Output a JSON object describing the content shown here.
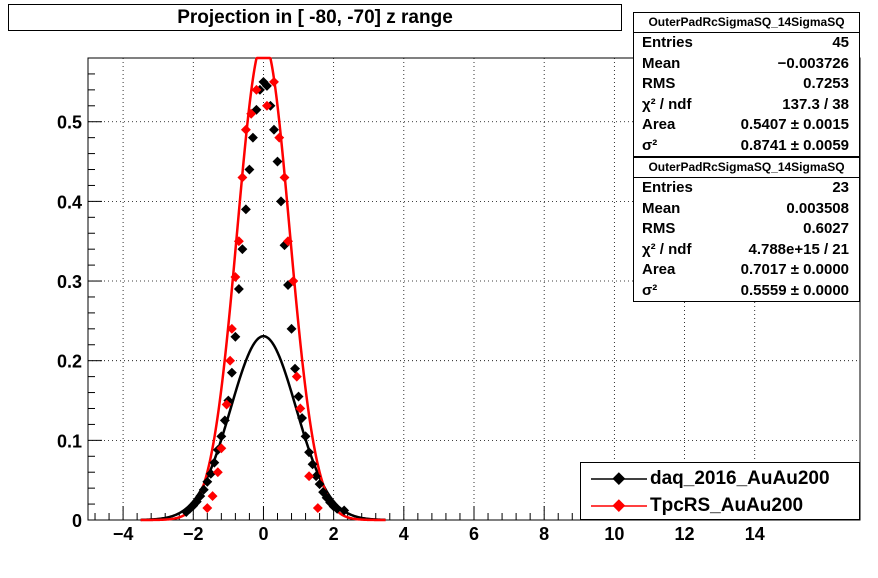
{
  "title": "Projection in [ -80, -70] z range",
  "stats": [
    {
      "name": "OuterPadRcSigmaSQ_14SigmaSQ",
      "rows": [
        {
          "label": "Entries",
          "value": "45"
        },
        {
          "label": "Mean",
          "value": "−0.003726"
        },
        {
          "label": "RMS",
          "value": "0.7253"
        },
        {
          "label": "χ² / ndf",
          "value": "137.3 / 38"
        },
        {
          "label": "Area",
          "value": "0.5407 ± 0.0015"
        },
        {
          "label": "σ²",
          "value": "0.8741 ± 0.0059"
        }
      ]
    },
    {
      "name": "OuterPadRcSigmaSQ_14SigmaSQ",
      "rows": [
        {
          "label": "Entries",
          "value": "23"
        },
        {
          "label": "Mean",
          "value": "0.003508"
        },
        {
          "label": "RMS",
          "value": "0.6027"
        },
        {
          "label": "χ² / ndf",
          "value": "4.788e+15 / 21"
        },
        {
          "label": "Area",
          "value": "0.7017 ± 0.0000"
        },
        {
          "label": "σ²",
          "value": "0.5559 ± 0.0000"
        }
      ]
    }
  ],
  "legend": [
    {
      "label": "daq_2016_AuAu200",
      "color": "#000000"
    },
    {
      "label": "TpcRS_AuAu200",
      "color": "#ff0000"
    }
  ],
  "chart_data": {
    "type": "scatter",
    "title": "Projection in [ -80, -70] z range",
    "xlim": [
      -5,
      17
    ],
    "ylim": [
      0,
      0.58
    ],
    "xticks": [
      "−4",
      "−2",
      "0",
      "2",
      "4",
      "6",
      "8",
      "10",
      "12",
      "14"
    ],
    "xtick_values": [
      -4,
      -2,
      0,
      2,
      4,
      6,
      8,
      10,
      12,
      14
    ],
    "yticks": [
      "0",
      "0.1",
      "0.2",
      "0.3",
      "0.4",
      "0.5"
    ],
    "ytick_values": [
      0,
      0.1,
      0.2,
      0.3,
      0.4,
      0.5
    ],
    "grid": true,
    "legend_position": "bottom-right",
    "series": [
      {
        "name": "daq_2016_AuAu200",
        "color": "#000000",
        "fit_sigma2": 0.8741,
        "fit_area": 0.5407,
        "points": [
          [
            -2.2,
            0.01
          ],
          [
            -2.1,
            0.014
          ],
          [
            -2.0,
            0.018
          ],
          [
            -1.9,
            0.023
          ],
          [
            -1.8,
            0.03
          ],
          [
            -1.7,
            0.038
          ],
          [
            -1.6,
            0.048
          ],
          [
            -1.5,
            0.058
          ],
          [
            -1.4,
            0.072
          ],
          [
            -1.3,
            0.088
          ],
          [
            -1.2,
            0.105
          ],
          [
            -1.1,
            0.125
          ],
          [
            -1.0,
            0.15
          ],
          [
            -0.9,
            0.185
          ],
          [
            -0.8,
            0.23
          ],
          [
            -0.7,
            0.29
          ],
          [
            -0.6,
            0.34
          ],
          [
            -0.5,
            0.39
          ],
          [
            -0.4,
            0.44
          ],
          [
            -0.3,
            0.48
          ],
          [
            -0.2,
            0.515
          ],
          [
            -0.1,
            0.54
          ],
          [
            0.0,
            0.55
          ],
          [
            0.1,
            0.545
          ],
          [
            0.2,
            0.52
          ],
          [
            0.3,
            0.49
          ],
          [
            0.4,
            0.45
          ],
          [
            0.5,
            0.4
          ],
          [
            0.6,
            0.345
          ],
          [
            0.7,
            0.295
          ],
          [
            0.8,
            0.24
          ],
          [
            0.9,
            0.19
          ],
          [
            1.0,
            0.155
          ],
          [
            1.1,
            0.128
          ],
          [
            1.2,
            0.105
          ],
          [
            1.3,
            0.085
          ],
          [
            1.4,
            0.07
          ],
          [
            1.5,
            0.055
          ],
          [
            1.6,
            0.045
          ],
          [
            1.7,
            0.035
          ],
          [
            1.8,
            0.028
          ],
          [
            1.9,
            0.022
          ],
          [
            2.0,
            0.017
          ],
          [
            2.1,
            0.014
          ],
          [
            2.3,
            0.012
          ]
        ]
      },
      {
        "name": "TpcRS_AuAu200",
        "color": "#ff0000",
        "fit_sigma2": 0.5559,
        "fit_area": 0.7017,
        "points": [
          [
            -1.6,
            0.015
          ],
          [
            -1.45,
            0.03
          ],
          [
            -1.3,
            0.06
          ],
          [
            -1.2,
            0.09
          ],
          [
            -1.05,
            0.145
          ],
          [
            -0.95,
            0.2
          ],
          [
            -0.9,
            0.24
          ],
          [
            -0.8,
            0.305
          ],
          [
            -0.7,
            0.35
          ],
          [
            -0.6,
            0.43
          ],
          [
            -0.5,
            0.49
          ],
          [
            -0.35,
            0.51
          ],
          [
            -0.2,
            0.54
          ],
          [
            0.1,
            0.52
          ],
          [
            0.3,
            0.55
          ],
          [
            0.45,
            0.48
          ],
          [
            0.6,
            0.43
          ],
          [
            0.7,
            0.35
          ],
          [
            0.85,
            0.3
          ],
          [
            0.95,
            0.18
          ],
          [
            1.05,
            0.14
          ],
          [
            1.3,
            0.055
          ],
          [
            1.55,
            0.015
          ]
        ]
      }
    ]
  }
}
